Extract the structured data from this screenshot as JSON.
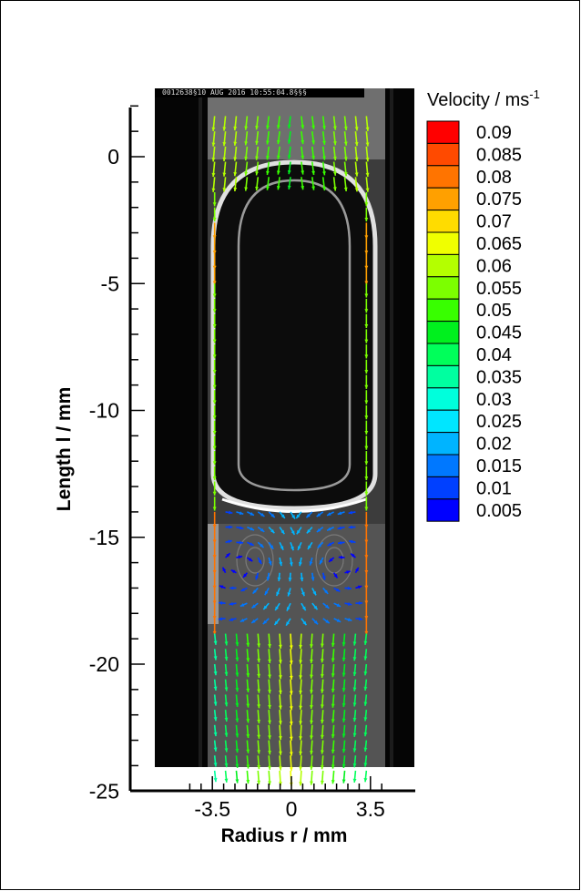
{
  "chart_data": {
    "type": "vector-field",
    "xlabel": "Radius r / mm",
    "ylabel": "Length l / mm",
    "xlim": [
      -4.9,
      4.3
    ],
    "ylim": [
      -25,
      2
    ],
    "x_ticks": [
      -3.5,
      0,
      3.5
    ],
    "x_tick_labels": [
      "-3.5",
      "0",
      "3.5"
    ],
    "y_ticks": [
      0,
      -5,
      -10,
      -15,
      -20,
      -25
    ],
    "y_tick_labels": [
      "0",
      "-5",
      "-10",
      "-15",
      "-20",
      "-25"
    ],
    "image_timestamp": "0012638§10 AUG 2016 10:55:04.8§§§",
    "legend": {
      "title": "Velocity / ms",
      "title_superscript": "-1",
      "placement": "right",
      "levels": [
        0.09,
        0.085,
        0.08,
        0.075,
        0.07,
        0.065,
        0.06,
        0.055,
        0.05,
        0.045,
        0.04,
        0.035,
        0.03,
        0.025,
        0.02,
        0.015,
        0.01,
        0.005
      ],
      "labels": [
        "0.09",
        "0.085",
        "0.08",
        "0.075",
        "0.07",
        "0.065",
        "0.06",
        "0.055",
        "0.05",
        "0.045",
        "0.04",
        "0.035",
        "0.03",
        "0.025",
        "0.02",
        "0.015",
        "0.01",
        "0.005"
      ],
      "colors": [
        "#ff0000",
        "#ff4a00",
        "#ff7400",
        "#ffa000",
        "#ffdc00",
        "#f0ff00",
        "#b4ff00",
        "#7cff00",
        "#38ff00",
        "#00f01e",
        "#00ff5a",
        "#00ffa0",
        "#00ffdc",
        "#00e6ff",
        "#00b4ff",
        "#0078ff",
        "#0040ff",
        "#0000ff"
      ]
    },
    "bubble": {
      "r_half_width_mm": 3.2,
      "l_top_mm": -0.8,
      "l_bottom_mm": -13.7
    },
    "channel_wall_r_mm": 3.5
  }
}
